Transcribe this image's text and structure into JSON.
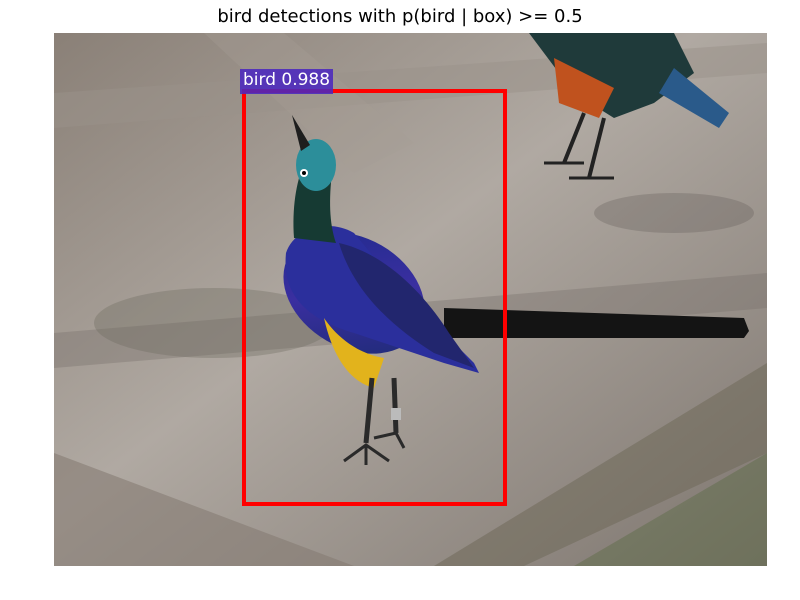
{
  "title": "bird detections with p(bird | box) >= 0.5",
  "detections": [
    {
      "class_label": "bird",
      "score": "0.988",
      "text": "bird 0.988",
      "box_color": "#ff0000",
      "label_color": "#4b28be"
    }
  ],
  "photo": {
    "subject": "bird-photo",
    "colors": {
      "ground": "#8c8580",
      "plumage": "#2a3a9a",
      "belly": "#e0b21a",
      "head": "#2a8a9a",
      "tail": "#151515"
    }
  }
}
